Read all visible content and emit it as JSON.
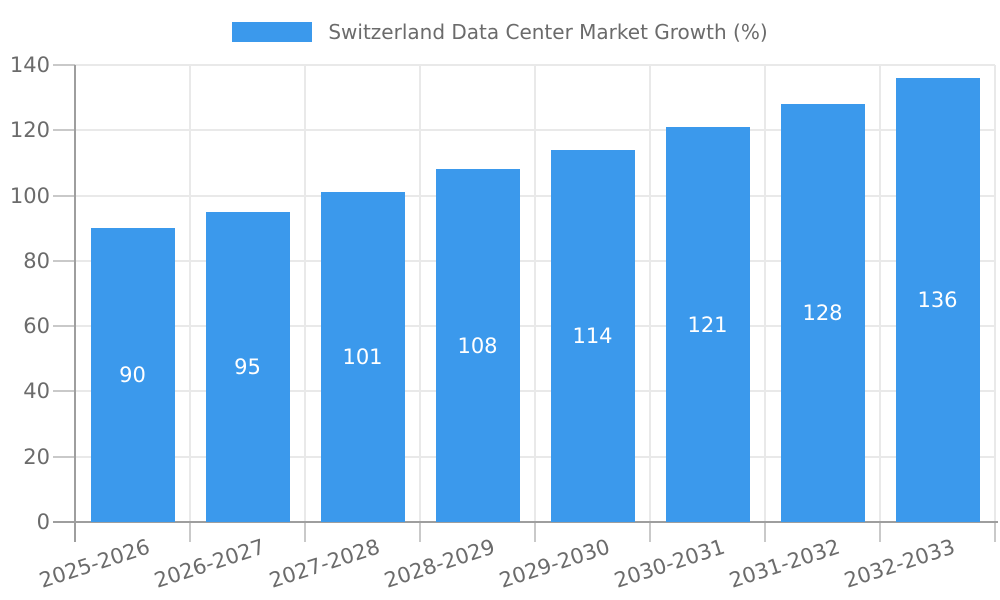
{
  "legend": {
    "label": "Switzerland Data Center Market Growth (%)"
  },
  "chart_data": {
    "type": "bar",
    "title": "Switzerland Data Center Market Growth (%)",
    "categories": [
      "2025-2026",
      "2026-2027",
      "2027-2028",
      "2028-2029",
      "2029-2030",
      "2030-2031",
      "2031-2032",
      "2032-2033"
    ],
    "values": [
      90,
      95,
      101,
      108,
      114,
      121,
      128,
      136
    ],
    "xlabel": "",
    "ylabel": "",
    "ylim": [
      0,
      140
    ],
    "ytick_step": 20,
    "yticks": [
      0,
      20,
      40,
      60,
      80,
      100,
      120,
      140
    ],
    "grid": true,
    "legend_position": "top",
    "value_labels": "inside-center-white",
    "colors": {
      "bar": "#3b99ec",
      "value_label": "#ffffff",
      "axis_line": "#9e9e9e",
      "grid_line": "#e9e9e9",
      "tick_mark": "#c9c9c9",
      "label_text": "#6b6b6b"
    }
  }
}
